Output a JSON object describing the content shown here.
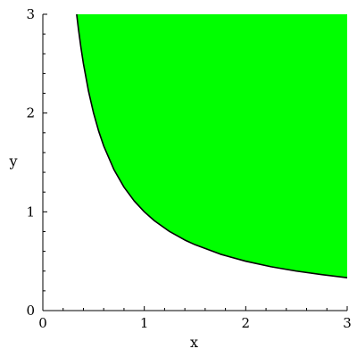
{
  "chart_data": {
    "type": "area",
    "title": "",
    "xlabel": "x",
    "ylabel": "y",
    "xlim": [
      0,
      3
    ],
    "ylim": [
      0,
      3
    ],
    "x_ticks": [
      {
        "value": 0,
        "label": "0"
      },
      {
        "value": 1,
        "label": "1"
      },
      {
        "value": 2,
        "label": "2"
      },
      {
        "value": 3,
        "label": "3"
      }
    ],
    "y_ticks": [
      {
        "value": 0,
        "label": "0"
      },
      {
        "value": 1,
        "label": "1"
      },
      {
        "value": 2,
        "label": "2"
      },
      {
        "value": 3,
        "label": "3"
      }
    ],
    "x_minor_step": 0.2,
    "y_minor_step": 0.2,
    "grid": false,
    "legend": "none",
    "series": [
      {
        "kind": "boundary-curve",
        "color": "#000000",
        "x": [
          0.3333,
          0.35,
          0.375,
          0.4,
          0.45,
          0.5,
          0.55,
          0.6,
          0.7,
          0.8,
          0.9,
          1.0,
          1.1,
          1.25,
          1.4,
          1.5,
          1.75,
          2.0,
          2.25,
          2.5,
          2.75,
          3.0
        ],
        "y": [
          3.0,
          2.857,
          2.667,
          2.5,
          2.222,
          2.0,
          1.818,
          1.667,
          1.429,
          1.25,
          1.111,
          1.0,
          0.909,
          0.8,
          0.714,
          0.667,
          0.571,
          0.5,
          0.444,
          0.4,
          0.364,
          0.333
        ]
      }
    ],
    "filled_region": {
      "description_from_plot": "area above the curve",
      "fill_color": "#00ff00",
      "upper_y": 3
    }
  },
  "colors": {
    "fill": "#00ff00",
    "curve": "#000000",
    "axis": "#000000",
    "background": "#ffffff"
  }
}
